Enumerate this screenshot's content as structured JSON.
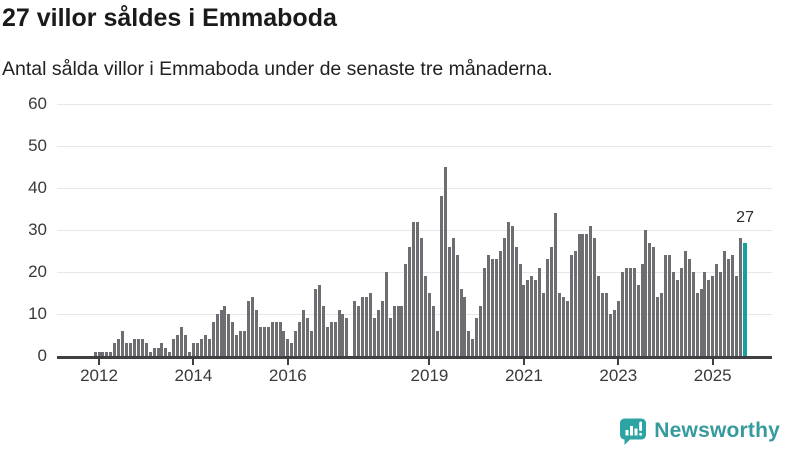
{
  "header": {
    "title": "27 villor såldes i Emmaboda",
    "subtitle": "Antal sålda villor i Emmaboda under de senaste tre månaderna."
  },
  "branding": {
    "wordmark": "Newsworthy"
  },
  "colors": {
    "background": "#ffffff",
    "bar": "#6e6d72",
    "highlight": "#16a09f",
    "grid": "#e7e7e7",
    "axis": "#3f3f3f",
    "tick_text": "#3a3a3a",
    "title_text": "#1a1a1a",
    "brand_text": "#379a9c",
    "brand_icon": "#2da3a4"
  },
  "chart_data": {
    "type": "bar",
    "title": "27 villor såldes i Emmaboda",
    "subtitle": "Antal sålda villor i Emmaboda under de senaste tre månaderna.",
    "xlabel": "",
    "ylabel": "",
    "frequency": "monthly",
    "start": "2011-12",
    "end": "2025-09",
    "ylim": [
      0,
      60
    ],
    "grid": true,
    "legend": false,
    "y_ticks": [
      0,
      10,
      20,
      30,
      40,
      50,
      60
    ],
    "x_tick_labels": [
      "2012",
      "2014",
      "2016",
      "2019",
      "2021",
      "2023",
      "2025"
    ],
    "highlighted_last_value": 27,
    "highlighted_label": "27",
    "values": [
      1,
      1,
      1,
      1,
      1,
      3,
      4,
      6,
      3,
      3,
      4,
      4,
      4,
      3,
      1,
      2,
      2,
      3,
      2,
      1,
      4,
      5,
      7,
      5,
      1,
      3,
      3,
      4,
      5,
      4,
      8,
      10,
      11,
      12,
      10,
      8,
      5,
      6,
      6,
      13,
      14,
      11,
      7,
      7,
      7,
      8,
      8,
      8,
      6,
      4,
      3,
      6,
      8,
      11,
      9,
      6,
      16,
      17,
      12,
      7,
      8,
      8,
      11,
      10,
      9,
      0,
      13,
      12,
      14,
      14,
      15,
      9,
      11,
      13,
      20,
      9,
      12,
      12,
      12,
      22,
      26,
      32,
      32,
      28,
      19,
      15,
      12,
      6,
      38,
      45,
      26,
      28,
      24,
      16,
      14,
      6,
      4,
      9,
      12,
      21,
      24,
      23,
      23,
      25,
      28,
      32,
      31,
      26,
      22,
      17,
      18,
      19,
      18,
      21,
      15,
      23,
      26,
      34,
      15,
      14,
      13,
      24,
      25,
      29,
      29,
      29,
      31,
      28,
      19,
      15,
      15,
      10,
      11,
      13,
      20,
      21,
      21,
      21,
      17,
      22,
      30,
      27,
      26,
      14,
      15,
      24,
      24,
      20,
      18,
      21,
      25,
      23,
      20,
      15,
      16,
      20,
      18,
      19,
      22,
      20,
      25,
      23,
      24,
      19,
      28,
      27
    ]
  }
}
